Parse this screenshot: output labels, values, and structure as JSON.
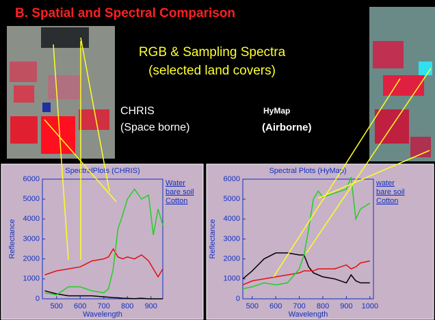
{
  "slide": {
    "title": "B. Spatial and Spectral Comparison",
    "heading": [
      "RGB & Sampling Spectra",
      "(selected land covers)"
    ],
    "chris_label": [
      "CHRIS",
      "(Space borne)"
    ],
    "hymap_label": [
      "HyMap",
      "(Airborne)"
    ]
  },
  "chart_data": [
    {
      "type": "line",
      "title": "SpectralPlots (CHRIS)",
      "x_label": "Wavelength",
      "y_label": "Reflectance",
      "x": [
        450,
        500,
        550,
        600,
        650,
        700,
        720,
        740,
        760,
        780,
        800,
        830,
        860,
        890,
        910,
        930,
        950
      ],
      "series": [
        {
          "name": "Water",
          "color": "#000000",
          "values": [
            400,
            250,
            150,
            150,
            150,
            100,
            80,
            60,
            50,
            30,
            20,
            10,
            30,
            0,
            0,
            0,
            0
          ]
        },
        {
          "name": "bare soil",
          "color": "#e01010",
          "values": [
            1200,
            1400,
            1500,
            1600,
            1900,
            2000,
            2100,
            2500,
            2100,
            2000,
            2100,
            2000,
            2200,
            1900,
            1500,
            1100,
            1500
          ]
        },
        {
          "name": "Cotton",
          "color": "#20d020",
          "values": [
            300,
            200,
            600,
            600,
            400,
            300,
            500,
            1500,
            3500,
            4200,
            5000,
            5500,
            5000,
            5200,
            3200,
            4500,
            3700
          ]
        }
      ],
      "xlim": [
        440,
        950
      ],
      "xticks": [
        500,
        600,
        700,
        800,
        900
      ],
      "ylim": [
        0,
        6000
      ],
      "yticks": [
        0,
        1000,
        2000,
        3000,
        4000,
        5000,
        6000
      ]
    },
    {
      "type": "line",
      "title": "Spectral Plots (HyMap)",
      "x_label": "Wavelength",
      "y_label": "Reflectance",
      "x": [
        460,
        500,
        550,
        600,
        650,
        700,
        720,
        740,
        760,
        780,
        800,
        850,
        900,
        920,
        940,
        960,
        1000
      ],
      "series": [
        {
          "name": "water",
          "color": "#000000",
          "values": [
            1000,
            1400,
            2000,
            2300,
            2300,
            2200,
            2200,
            1600,
            1300,
            1200,
            1100,
            1000,
            800,
            1200,
            900,
            800,
            800
          ]
        },
        {
          "name": "bare soil",
          "color": "#e01010",
          "values": [
            700,
            900,
            1000,
            1100,
            1200,
            1300,
            1400,
            1400,
            1400,
            1500,
            1500,
            1500,
            1700,
            1500,
            1600,
            1800,
            1900
          ]
        },
        {
          "name": "Cotton",
          "color": "#20d020",
          "values": [
            500,
            600,
            800,
            700,
            800,
            1500,
            2200,
            3500,
            5000,
            5400,
            5100,
            5300,
            5500,
            6100,
            4000,
            4500,
            4800
          ]
        }
      ],
      "xlim": [
        460,
        1015
      ],
      "xticks": [
        500,
        600,
        700,
        800,
        900,
        1000
      ],
      "ylim": [
        0,
        6000
      ],
      "yticks": [
        0,
        1000,
        2000,
        3000,
        4000,
        5000,
        6000
      ]
    }
  ]
}
